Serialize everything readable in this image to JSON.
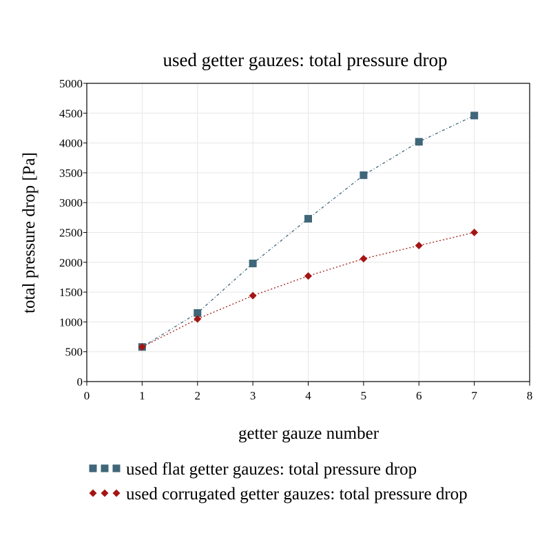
{
  "chart_data": {
    "type": "line",
    "title": "used getter gauzes: total pressure drop",
    "xlabel": "getter gauze number",
    "ylabel": "total pressure drop [Pa]",
    "xlim": [
      0,
      8
    ],
    "ylim": [
      0,
      5000
    ],
    "x_ticks": [
      0,
      1,
      2,
      3,
      4,
      5,
      6,
      7,
      8
    ],
    "y_ticks": [
      0,
      500,
      1000,
      1500,
      2000,
      2500,
      3000,
      3500,
      4000,
      4500,
      5000
    ],
    "grid": true,
    "legend_position": "bottom",
    "series": [
      {
        "name": "used flat getter gauzes: total pressure drop",
        "color": "#3f6679",
        "marker": "square",
        "line_style": "dash-dot",
        "x": [
          1,
          2,
          3,
          4,
          5,
          6,
          7
        ],
        "y": [
          580,
          1150,
          1980,
          2730,
          3460,
          4020,
          4460
        ]
      },
      {
        "name": "used corrugated getter gauzes: total pressure drop",
        "color": "#a31515",
        "marker": "diamond",
        "line_style": "dotted",
        "x": [
          1,
          2,
          3,
          4,
          5,
          6,
          7
        ],
        "y": [
          580,
          1050,
          1440,
          1770,
          2060,
          2280,
          2500
        ]
      }
    ]
  }
}
